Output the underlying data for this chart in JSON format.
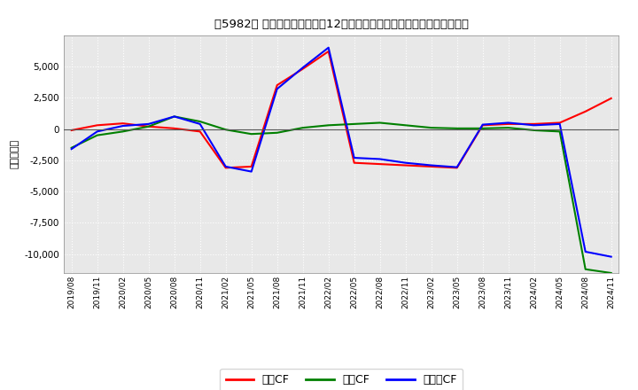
{
  "title": "［5982］ キャッシュフローの12か月移動合計の対前年同期増減額の推移",
  "ylabel": "（百万円）",
  "background_color": "#ffffff",
  "plot_bg_color": "#e8e8e8",
  "grid_color": "#ffffff",
  "ylim": [
    -11500,
    7500
  ],
  "yticks": [
    -10000,
    -7500,
    -5000,
    -2500,
    0,
    2500,
    5000
  ],
  "xtick_labels": [
    "2019/08",
    "2019/11",
    "2020/02",
    "2020/05",
    "2020/08",
    "2020/11",
    "2021/02",
    "2021/05",
    "2021/08",
    "2021/11",
    "2022/02",
    "2022/05",
    "2022/08",
    "2022/11",
    "2023/02",
    "2023/05",
    "2023/08",
    "2023/11",
    "2024/02",
    "2024/05",
    "2024/08",
    "2024/11"
  ],
  "series": {
    "営業CF": {
      "color": "#ff0000",
      "data": [
        -100,
        300,
        450,
        200,
        50,
        -200,
        -3100,
        -3000,
        3500,
        4800,
        6200,
        -2700,
        -2800,
        -2900,
        -3000,
        -3100,
        300,
        400,
        400,
        500,
        1400,
        2450
      ]
    },
    "投資CF": {
      "color": "#008000",
      "data": [
        -1500,
        -500,
        -200,
        200,
        1000,
        600,
        -50,
        -400,
        -300,
        100,
        300,
        400,
        500,
        300,
        100,
        50,
        50,
        100,
        -100,
        -200,
        -11200,
        -11500
      ]
    },
    "フリーCF": {
      "color": "#0000ff",
      "data": [
        -1600,
        -200,
        250,
        400,
        1000,
        400,
        -3000,
        -3400,
        3200,
        4900,
        6500,
        -2300,
        -2400,
        -2700,
        -2900,
        -3050,
        350,
        500,
        300,
        400,
        -9800,
        -10200
      ]
    }
  },
  "legend_entries": [
    "営業CF",
    "投資CF",
    "フリーCF"
  ],
  "legend_colors": [
    "#ff0000",
    "#008000",
    "#0000ff"
  ]
}
